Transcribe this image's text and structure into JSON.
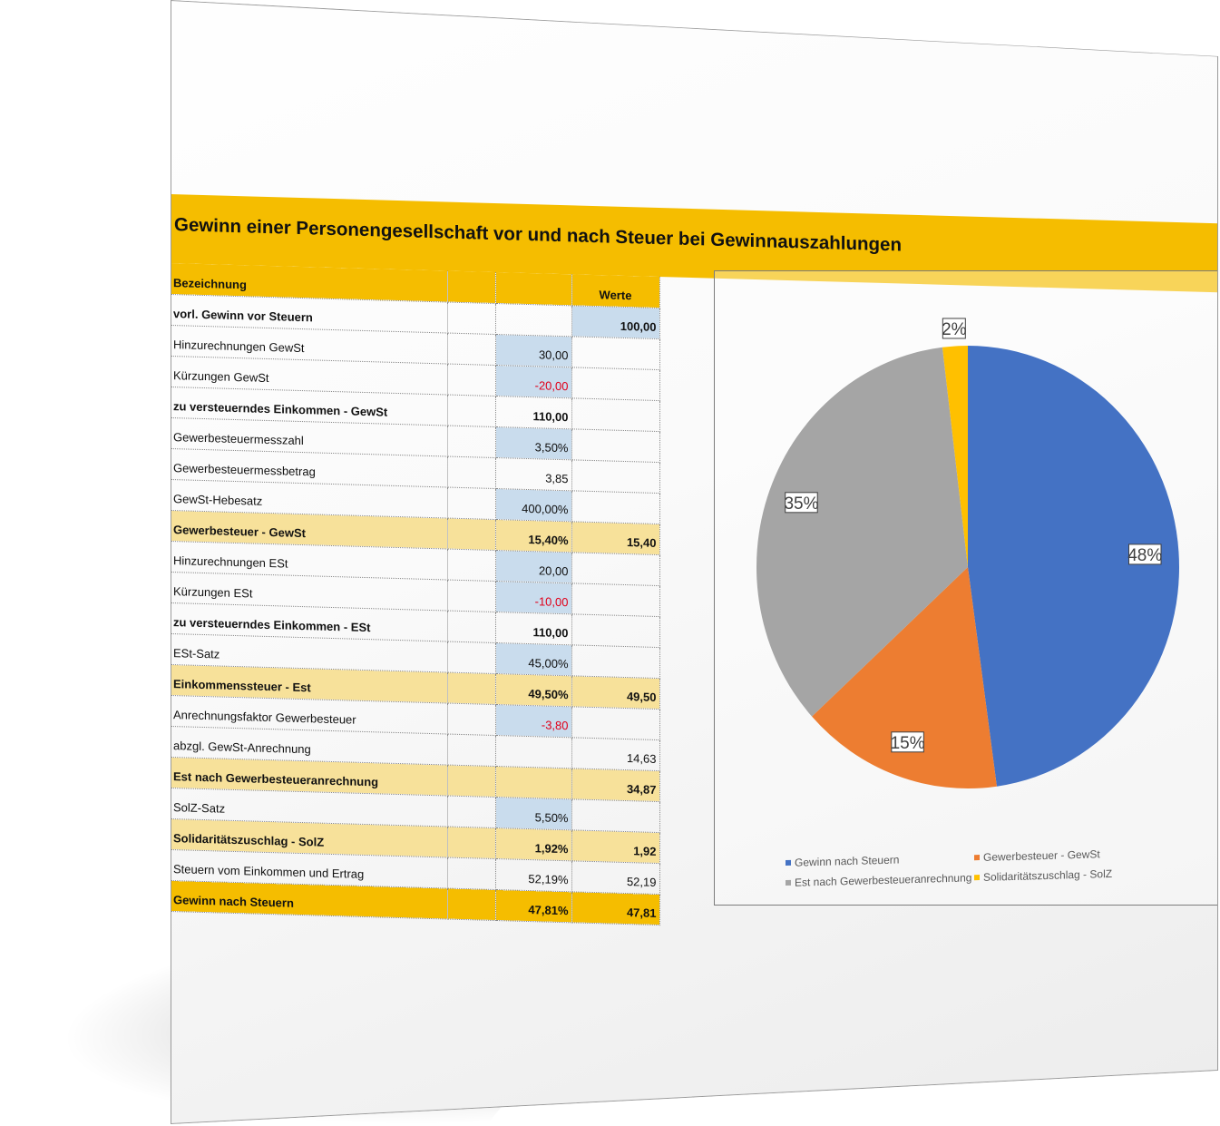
{
  "document": {
    "title": "Gewinn einer Personengesellschaft vor und nach Steuer bei Gewinnauszahlungen"
  },
  "table": {
    "header": {
      "label": "Bezeichnung",
      "col3": "",
      "col4": "Werte"
    },
    "rows": [
      {
        "label": "vorl. Gewinn vor Steuern",
        "c3": "",
        "c4": "100,00",
        "style": "bold"
      },
      {
        "label": "Hinzurechnungen GewSt",
        "c3": "30,00",
        "c4": "",
        "style": "plain"
      },
      {
        "label": "Kürzungen GewSt",
        "c3": "-20,00",
        "c4": "",
        "style": "plain"
      },
      {
        "label": "zu versteuerndes Einkommen - GewSt",
        "c3": "110,00",
        "c4": "",
        "style": "bold"
      },
      {
        "label": "Gewerbesteuermesszahl",
        "c3": "3,50%",
        "c4": "",
        "style": "plain"
      },
      {
        "label": "Gewerbesteuermessbetrag",
        "c3": "3,85",
        "c4": "",
        "style": "plain"
      },
      {
        "label": "GewSt-Hebesatz",
        "c3": "400,00%",
        "c4": "",
        "style": "plain"
      },
      {
        "label": "Gewerbesteuer - GewSt",
        "c3": "15,40%",
        "c4": "15,40",
        "style": "sub"
      },
      {
        "label": "Hinzurechnungen ESt",
        "c3": "20,00",
        "c4": "",
        "style": "plain"
      },
      {
        "label": "Kürzungen ESt",
        "c3": "-10,00",
        "c4": "",
        "style": "plain"
      },
      {
        "label": "zu versteuerndes Einkommen - ESt",
        "c3": "110,00",
        "c4": "",
        "style": "bold"
      },
      {
        "label": "ESt-Satz",
        "c3": "45,00%",
        "c4": "",
        "style": "plain"
      },
      {
        "label": "Einkommenssteuer - Est",
        "c3": "49,50%",
        "c4": "49,50",
        "style": "sub"
      },
      {
        "label": "Anrechnungsfaktor Gewerbesteuer",
        "c3": "-3,80",
        "c4": "",
        "style": "plain"
      },
      {
        "label": "abzgl. GewSt-Anrechnung",
        "c3": "",
        "c4": "14,63",
        "style": "plain"
      },
      {
        "label": "Est nach Gewerbesteueranrechnung",
        "c3": "",
        "c4": "34,87",
        "style": "sub"
      },
      {
        "label": "SolZ-Satz",
        "c3": "5,50%",
        "c4": "",
        "style": "plain"
      },
      {
        "label": "Solidaritätszuschlag - SolZ",
        "c3": "1,92%",
        "c4": "1,92",
        "style": "sub"
      },
      {
        "label": "Steuern vom Einkommen und Ertrag",
        "c3": "52,19%",
        "c4": "52,19",
        "style": "plain"
      },
      {
        "label": "Gewinn nach Steuern",
        "c3": "47,81%",
        "c4": "47,81",
        "style": "total"
      }
    ]
  },
  "chart_data": {
    "type": "pie",
    "title": "",
    "categories": [
      "Gewinn nach Steuern",
      "Gewerbesteuer - GewSt",
      "Est nach Gewerbesteueranrechnung",
      "Solidaritätszuschlag - SolZ"
    ],
    "values": [
      47.81,
      15.4,
      34.87,
      1.92
    ],
    "labels": [
      "48%",
      "15%",
      "35%",
      "2%"
    ],
    "colors": [
      "#4472c4",
      "#ed7d31",
      "#a5a5a5",
      "#ffc000"
    ],
    "legend_position": "bottom"
  }
}
